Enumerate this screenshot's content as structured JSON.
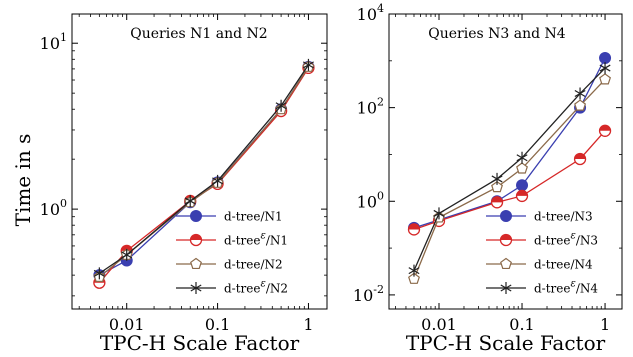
{
  "figure": {
    "ylabel": "Time in s"
  },
  "chart_data": [
    {
      "type": "line",
      "title": "Queries N1 and N2",
      "xlabel": "TPC-H Scale Factor",
      "ylabel": "Time in s",
      "x_scale": "log",
      "y_scale": "log",
      "xlim": [
        0.0025,
        1.6
      ],
      "ylim": [
        0.25,
        15
      ],
      "x_ticks": [
        0.01,
        0.1,
        1
      ],
      "x_tick_labels": [
        "0.01",
        "0.1",
        "1"
      ],
      "y_ticks": [
        1,
        10
      ],
      "y_tick_labels": [
        "10^0",
        "10^1"
      ],
      "legend_position": "bottom-right",
      "x": [
        0.005,
        0.01,
        0.05,
        0.1,
        0.5,
        1
      ],
      "series": [
        {
          "label_main": "d-tree/N1",
          "label_sup": "",
          "label_post": "",
          "marker": "circle",
          "color": "#3a3fb0",
          "values": [
            0.4,
            0.49,
            1.1,
            1.45,
            4.0,
            7.2
          ]
        },
        {
          "label_main": "d-tree",
          "label_sup": "ε",
          "label_post": "/N1",
          "marker": "half-circle",
          "color": "#d62828",
          "values": [
            0.36,
            0.56,
            1.12,
            1.42,
            3.9,
            7.1
          ]
        },
        {
          "label_main": "d-tree/N2",
          "label_sup": "",
          "label_post": "",
          "marker": "pentagon",
          "color": "#8b6a4a",
          "values": [
            0.39,
            0.53,
            1.1,
            1.44,
            4.0,
            7.2
          ]
        },
        {
          "label_main": "d-tree",
          "label_sup": "ε",
          "label_post": "/N2",
          "marker": "star",
          "color": "#222222",
          "values": [
            0.41,
            0.53,
            1.12,
            1.48,
            4.2,
            7.4
          ]
        }
      ]
    },
    {
      "type": "line",
      "title": "Queries N3 and N4",
      "xlabel": "TPC-H Scale Factor",
      "ylabel": "",
      "x_scale": "log",
      "y_scale": "log",
      "xlim": [
        0.0025,
        1.6
      ],
      "ylim": [
        0.005,
        10000
      ],
      "x_ticks": [
        0.01,
        0.1,
        1
      ],
      "x_tick_labels": [
        "0.01",
        "0.1",
        "1"
      ],
      "y_ticks": [
        0.01,
        1,
        100,
        10000
      ],
      "y_tick_labels": [
        "10^-2",
        "10^0",
        "10^2",
        "10^4"
      ],
      "legend_position": "bottom-right",
      "x": [
        0.005,
        0.01,
        0.05,
        0.1,
        0.5,
        1
      ],
      "series": [
        {
          "label_main": "d-tree/N3",
          "label_sup": "",
          "label_post": "",
          "marker": "circle",
          "color": "#3a3fb0",
          "values": [
            0.27,
            0.4,
            1.0,
            2.2,
            100,
            1150
          ]
        },
        {
          "label_main": "d-tree",
          "label_sup": "ε",
          "label_post": "/N3",
          "marker": "half-circle",
          "color": "#d62828",
          "values": [
            0.25,
            0.38,
            0.95,
            1.3,
            8.0,
            32
          ]
        },
        {
          "label_main": "d-tree/N4",
          "label_sup": "",
          "label_post": "",
          "marker": "pentagon",
          "color": "#8b6a4a",
          "values": [
            0.022,
            0.45,
            2.0,
            5.0,
            110,
            400
          ]
        },
        {
          "label_main": "d-tree",
          "label_sup": "ε",
          "label_post": "/N4",
          "marker": "star",
          "color": "#222222",
          "values": [
            0.033,
            0.55,
            3.0,
            8.5,
            200,
            700
          ]
        }
      ]
    }
  ]
}
